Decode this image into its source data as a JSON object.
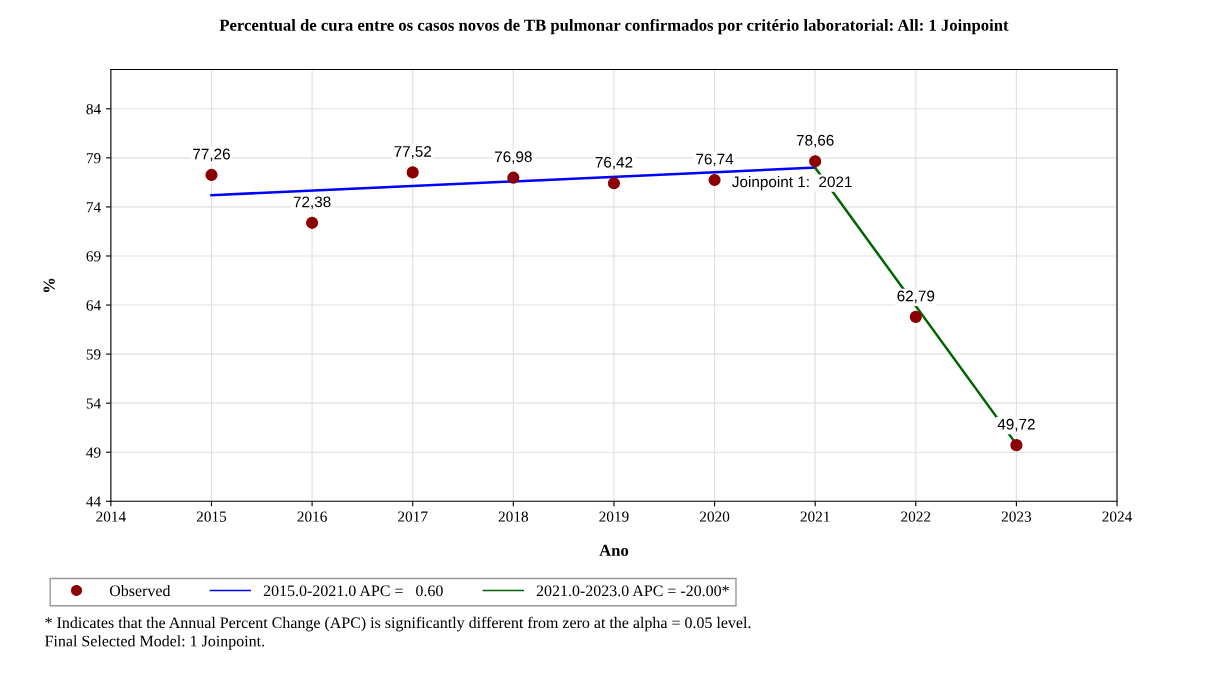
{
  "chart_data": {
    "type": "scatter",
    "title": "Percentual de cura entre os casos novos de TB pulmonar confirmados por critério laboratorial: All: 1 Joinpoint",
    "xlabel": "Ano",
    "ylabel": "%",
    "xlim": [
      2014,
      2024
    ],
    "xticks": [
      2014,
      2015,
      2016,
      2017,
      2018,
      2019,
      2020,
      2021,
      2022,
      2023,
      2024
    ],
    "ylim": [
      44,
      88
    ],
    "yticks": [
      44,
      49,
      54,
      59,
      64,
      69,
      74,
      79,
      84
    ],
    "grid": true,
    "legend": "bottom",
    "series": [
      {
        "name": "Observed",
        "marker": "circle",
        "color": "#8b0000",
        "x": [
          2015,
          2016,
          2017,
          2018,
          2019,
          2020,
          2021,
          2022,
          2023
        ],
        "values": [
          77.26,
          72.38,
          77.52,
          76.98,
          76.42,
          76.74,
          78.66,
          62.79,
          49.72
        ],
        "value_labels": [
          "77,26",
          "72,38",
          "77,52",
          "76,98",
          "76,42",
          "76,74",
          "78,66",
          "62,79",
          "49,72"
        ]
      },
      {
        "name": "2015.0-2021.0 APC =   0.60",
        "type": "line",
        "line_style": "solid",
        "color": "#0000ff",
        "x": [
          2015,
          2021
        ],
        "values": [
          75.2,
          78.0
        ]
      },
      {
        "name": "2021.0-2023.0 APC = -20.00*",
        "type": "line",
        "line_style": "solid",
        "color": "#006400",
        "x": [
          2021,
          2023
        ],
        "values": [
          78.0,
          49.8
        ]
      }
    ],
    "annotations": [
      {
        "text": "Joinpoint 1:  2021",
        "x": 2021,
        "y": 78.0
      },
      "* Indicates that the Annual Percent Change (APC) is significantly different from zero at the alpha = 0.05 level.",
      "Final Selected Model: 1 Joinpoint."
    ]
  }
}
